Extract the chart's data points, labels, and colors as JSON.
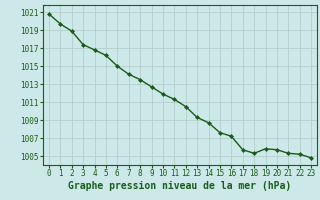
{
  "x": [
    0,
    1,
    2,
    3,
    4,
    5,
    6,
    7,
    8,
    9,
    10,
    11,
    12,
    13,
    14,
    15,
    16,
    17,
    18,
    19,
    20,
    21,
    22,
    23
  ],
  "y": [
    1020.8,
    1019.7,
    1018.9,
    1017.4,
    1016.8,
    1016.2,
    1015.0,
    1014.1,
    1013.5,
    1012.7,
    1011.9,
    1011.3,
    1010.5,
    1009.3,
    1008.7,
    1007.6,
    1007.2,
    1005.7,
    1005.3,
    1005.8,
    1005.7,
    1005.3,
    1005.2,
    1004.8
  ],
  "line_color": "#1a5c1a",
  "marker": "D",
  "marker_size": 2.0,
  "bg_color": "#cce8e8",
  "grid_color": "#b0c8c8",
  "ylim": [
    1004.0,
    1021.8
  ],
  "yticks": [
    1005,
    1007,
    1009,
    1011,
    1013,
    1015,
    1017,
    1019,
    1021
  ],
  "xlim": [
    -0.5,
    23.5
  ],
  "xticks": [
    0,
    1,
    2,
    3,
    4,
    5,
    6,
    7,
    8,
    9,
    10,
    11,
    12,
    13,
    14,
    15,
    16,
    17,
    18,
    19,
    20,
    21,
    22,
    23
  ],
  "xlabel": "Graphe pression niveau de la mer (hPa)",
  "xlabel_color": "#1a5c1a",
  "xlabel_fontsize": 7,
  "tick_fontsize": 5.5,
  "tick_color": "#1a5c1a",
  "spine_color": "#1a5c1a",
  "linewidth": 1.0
}
